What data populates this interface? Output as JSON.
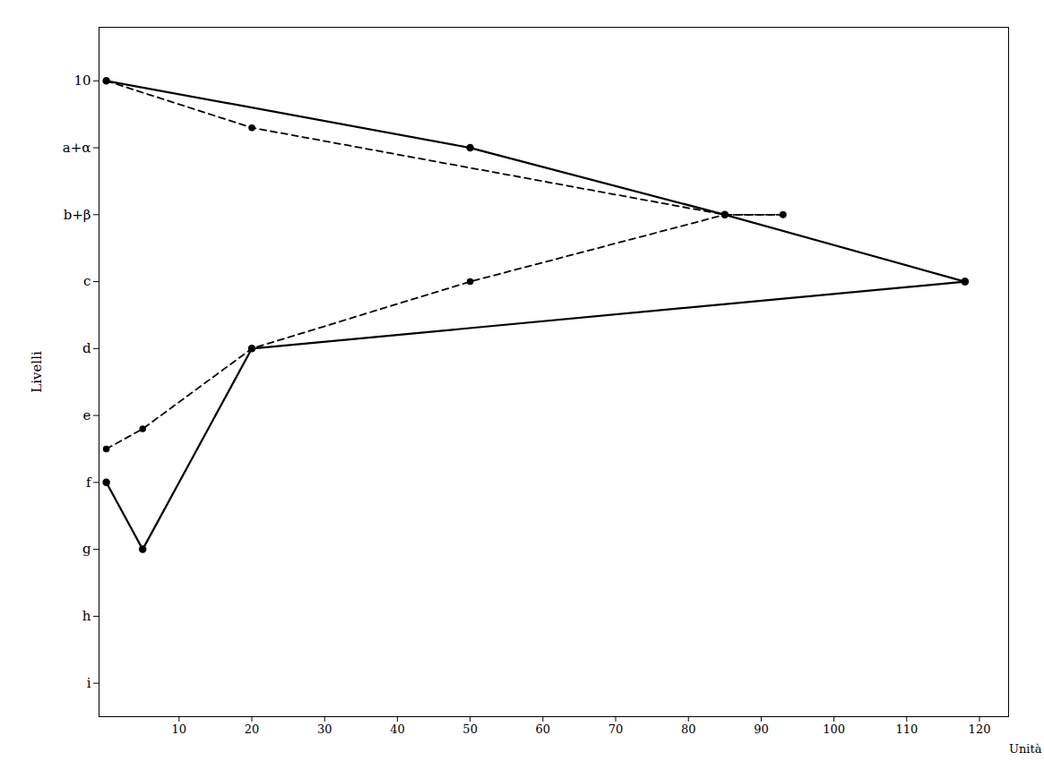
{
  "chart_data": {
    "type": "line",
    "x_label": "Unità",
    "y_label": "Livelli",
    "xlim": [
      -1,
      124
    ],
    "ylim": [
      0.5,
      10.8
    ],
    "xticks": [
      10,
      20,
      30,
      40,
      50,
      60,
      70,
      80,
      90,
      100,
      110,
      120
    ],
    "yticks": [
      10,
      {
        "value": 9,
        "label": "a+α"
      },
      {
        "value": 8,
        "label": "b+β"
      },
      {
        "value": 7,
        "label": "c"
      },
      {
        "value": 6,
        "label": "d"
      },
      {
        "value": 5,
        "label": "e"
      },
      {
        "value": 4,
        "label": "f"
      },
      {
        "value": 3,
        "label": "g"
      },
      {
        "value": 2,
        "label": "h"
      },
      {
        "value": 1,
        "label": "i"
      }
    ],
    "grid": false,
    "series": [
      {
        "x": [
          0,
          50,
          85,
          118
        ],
        "values": [
          10,
          9,
          8,
          7
        ],
        "color": "#000000",
        "line_style": "solid",
        "marker": "circle"
      },
      {
        "x": [
          0,
          5,
          20,
          118
        ],
        "values": [
          4,
          3,
          6,
          7
        ],
        "color": "#000000",
        "line_style": "solid",
        "marker": "circle"
      },
      {
        "x": [
          0,
          20,
          85,
          93
        ],
        "values": [
          10,
          9.3,
          8,
          8
        ],
        "color": "#000000",
        "line_style": "dashed",
        "marker": "circle"
      },
      {
        "x": [
          0,
          5,
          20,
          50,
          85,
          93
        ],
        "values": [
          4.5,
          4.8,
          6,
          7,
          8,
          8
        ],
        "color": "#000000",
        "line_style": "dashed",
        "marker": "circle"
      }
    ]
  }
}
